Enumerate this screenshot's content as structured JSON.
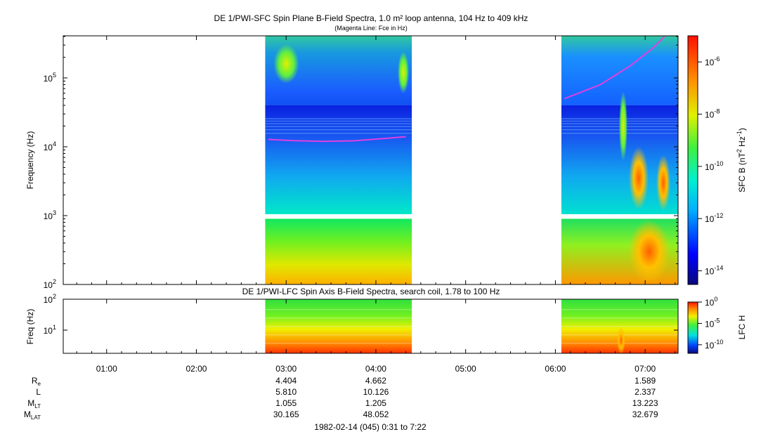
{
  "chart_data": [
    {
      "type": "heatmap",
      "title": "DE 1/PWI-SFC  Spin Plane B-Field Spectra, 1.0 m² loop antenna, 104 Hz to 409 kHz",
      "subtitle": "(Magenta Line: Fce in Hz)",
      "ylabel": "Frequency (Hz)",
      "y_scale": "log",
      "ylim": [
        100,
        409000
      ],
      "y_ticks": [
        {
          "value": 100,
          "base": "10",
          "exp": "2"
        },
        {
          "value": 1000,
          "base": "10",
          "exp": "3"
        },
        {
          "value": 10000,
          "base": "10",
          "exp": "4"
        },
        {
          "value": 100000,
          "base": "10",
          "exp": "5"
        }
      ],
      "colorbar": {
        "label": "SFC B (nT² Hz⁻¹)",
        "label_parts": {
          "pre": "SFC B (nT",
          "sup1": "2",
          "mid": " Hz",
          "sup2": "-1",
          "post": ")"
        },
        "scale": "log",
        "range": [
          3e-15,
          1e-05
        ],
        "ticks": [
          {
            "value": 1e-06,
            "base": "10",
            "exp": "-6"
          },
          {
            "value": 1e-08,
            "base": "10",
            "exp": "-8"
          },
          {
            "value": 1e-10,
            "base": "10",
            "exp": "-10"
          },
          {
            "value": 1e-12,
            "base": "10",
            "exp": "-12"
          },
          {
            "value": 1e-14,
            "base": "10",
            "exp": "-14"
          }
        ]
      },
      "data_intervals": [
        {
          "start": "02:46",
          "end": "04:24"
        },
        {
          "start": "06:04",
          "end": "07:22"
        }
      ],
      "fce_line_color": "#e040e0",
      "fce_line": [
        {
          "time": "02:48",
          "freq_hz": 12800
        },
        {
          "time": "03:05",
          "freq_hz": 12300
        },
        {
          "time": "03:25",
          "freq_hz": 12000
        },
        {
          "time": "03:45",
          "freq_hz": 12200
        },
        {
          "time": "04:05",
          "freq_hz": 13200
        },
        {
          "time": "04:20",
          "freq_hz": 14000
        },
        {
          "time": "06:06",
          "freq_hz": 50000
        },
        {
          "time": "06:30",
          "freq_hz": 80000
        },
        {
          "time": "06:50",
          "freq_hz": 150000
        },
        {
          "time": "07:05",
          "freq_hz": 270000
        },
        {
          "time": "07:13",
          "freq_hz": 400000
        }
      ]
    },
    {
      "type": "heatmap",
      "title": "DE 1/PWI-LFC  Spin Axis B-Field Spectra, search coil, 1.78 to 100 Hz",
      "ylabel": "Freq (Hz)",
      "y_scale": "log",
      "ylim": [
        1.78,
        100
      ],
      "y_ticks": [
        {
          "value": 100,
          "base": "10",
          "exp": "2"
        },
        {
          "value": 10,
          "base": "10",
          "exp": "1"
        }
      ],
      "colorbar": {
        "label": "LFC H",
        "scale": "log",
        "range": [
          1e-12,
          1
        ],
        "ticks": [
          {
            "value": 1,
            "base": "10",
            "exp": "0"
          },
          {
            "value": 1e-05,
            "base": "10",
            "exp": "-5"
          },
          {
            "value": 1e-10,
            "base": "10",
            "exp": "-10"
          }
        ]
      },
      "data_intervals": [
        {
          "start": "02:46",
          "end": "04:24"
        },
        {
          "start": "06:04",
          "end": "07:22"
        }
      ]
    }
  ],
  "x_axis": {
    "start": "00:31",
    "end": "07:22",
    "ticks": [
      "01:00",
      "02:00",
      "03:00",
      "04:00",
      "05:00",
      "06:00",
      "07:00"
    ]
  },
  "ephemeris": {
    "rows": [
      {
        "label": "R",
        "sub": "e",
        "values": {
          "03:00": "4.404",
          "04:00": "4.662",
          "07:00": "1.589"
        }
      },
      {
        "label": "L",
        "sub": "",
        "values": {
          "03:00": "5.810",
          "04:00": "10.126",
          "07:00": "2.337"
        }
      },
      {
        "label": "M",
        "sub": "LT",
        "values": {
          "03:00": "1.055",
          "04:00": "1.205",
          "07:00": "13.223"
        }
      },
      {
        "label": "M",
        "sub": "LAT",
        "values": {
          "03:00": "30.165",
          "04:00": "48.052",
          "07:00": "32.679"
        }
      }
    ]
  },
  "footer": "1982-02-14 (045) 0:31 to 7:22"
}
